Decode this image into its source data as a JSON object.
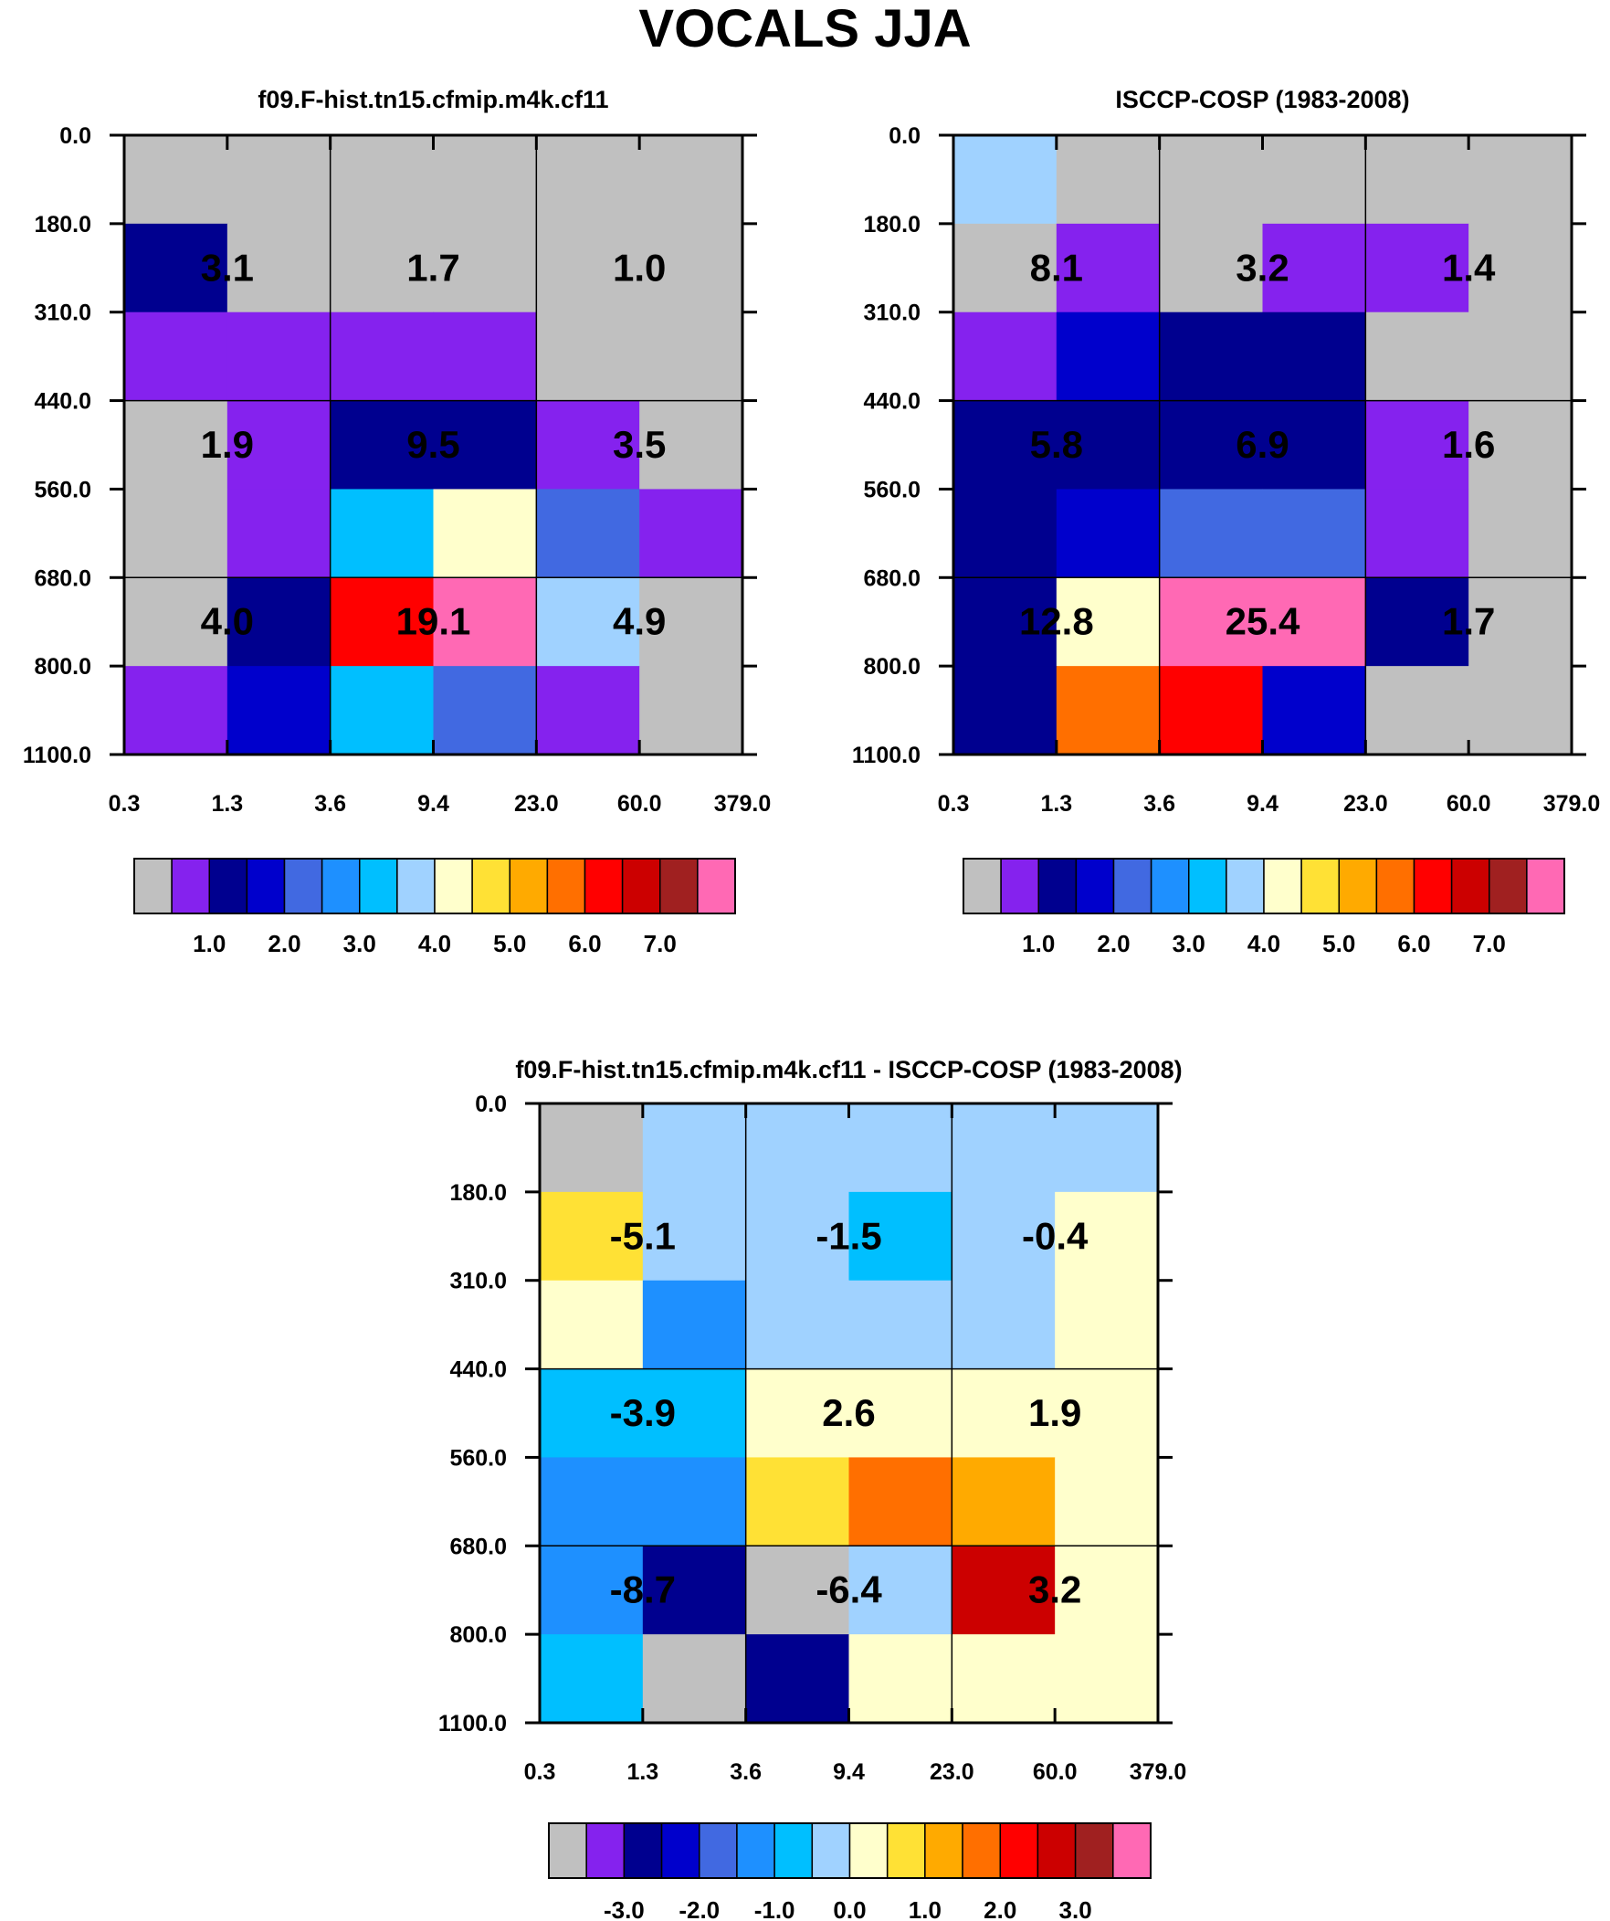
{
  "title": "VOCALS JJA",
  "palette": [
    "#c0c0c0",
    "#8522ee",
    "#00008f",
    "#0000cc",
    "#4169e1",
    "#1e90ff",
    "#00bfff",
    "#a0d2ff",
    "#ffffcc",
    "#ffe135",
    "#ffaa00",
    "#ff6f00",
    "#ff0000",
    "#cc0000",
    "#a02020",
    "#ff69b4"
  ],
  "chart_data": [
    {
      "type": "heatmap",
      "title": "f09.F-hist.tn15.cfmip.m4k.cf11",
      "x_ticks": [
        "0.3",
        "1.3",
        "3.6",
        "9.4",
        "23.0",
        "60.0",
        "379.0"
      ],
      "y_ticks": [
        "0.0",
        "180.0",
        "310.0",
        "440.0",
        "560.0",
        "680.0",
        "800.0",
        "1100.0"
      ],
      "cells": [
        [
          0,
          0,
          0,
          0,
          0,
          0
        ],
        [
          2,
          0,
          0,
          0,
          0,
          0
        ],
        [
          1,
          1,
          1,
          1,
          0,
          0
        ],
        [
          0,
          1,
          2,
          2,
          1,
          0
        ],
        [
          0,
          1,
          6,
          8,
          4,
          1
        ],
        [
          0,
          2,
          12,
          15,
          7,
          0
        ],
        [
          1,
          3,
          6,
          4,
          1,
          0
        ]
      ],
      "labels": [
        [
          "3.1",
          "1.7",
          "1.0"
        ],
        [
          "1.9",
          "9.5",
          "3.5"
        ],
        [
          "4.0",
          "19.1",
          "4.9"
        ]
      ],
      "colorbar_labels": [
        "1.0",
        "2.0",
        "3.0",
        "4.0",
        "5.0",
        "6.0",
        "7.0"
      ]
    },
    {
      "type": "heatmap",
      "title": "ISCCP-COSP (1983-2008)",
      "x_ticks": [
        "0.3",
        "1.3",
        "3.6",
        "9.4",
        "23.0",
        "60.0",
        "379.0"
      ],
      "y_ticks": [
        "0.0",
        "180.0",
        "310.0",
        "440.0",
        "560.0",
        "680.0",
        "800.0",
        "1100.0"
      ],
      "cells": [
        [
          7,
          0,
          0,
          0,
          0,
          0
        ],
        [
          0,
          1,
          0,
          1,
          1,
          0
        ],
        [
          1,
          3,
          2,
          2,
          0,
          0
        ],
        [
          2,
          2,
          2,
          2,
          1,
          0
        ],
        [
          2,
          3,
          4,
          4,
          1,
          0
        ],
        [
          2,
          8,
          15,
          15,
          2,
          0
        ],
        [
          2,
          11,
          12,
          3,
          0,
          0
        ]
      ],
      "labels": [
        [
          "8.1",
          "3.2",
          "1.4"
        ],
        [
          "5.8",
          "6.9",
          "1.6"
        ],
        [
          "12.8",
          "25.4",
          "1.7"
        ]
      ],
      "colorbar_labels": [
        "1.0",
        "2.0",
        "3.0",
        "4.0",
        "5.0",
        "6.0",
        "7.0"
      ]
    },
    {
      "type": "heatmap",
      "title": "f09.F-hist.tn15.cfmip.m4k.cf11 - ISCCP-COSP (1983-2008)",
      "x_ticks": [
        "0.3",
        "1.3",
        "3.6",
        "9.4",
        "23.0",
        "60.0",
        "379.0"
      ],
      "y_ticks": [
        "0.0",
        "180.0",
        "310.0",
        "440.0",
        "560.0",
        "680.0",
        "800.0",
        "1100.0"
      ],
      "cells": [
        [
          0,
          7,
          7,
          7,
          7,
          7
        ],
        [
          9,
          7,
          7,
          6,
          7,
          8
        ],
        [
          8,
          5,
          7,
          7,
          7,
          8
        ],
        [
          6,
          6,
          8,
          8,
          8,
          8
        ],
        [
          5,
          5,
          9,
          11,
          10,
          8
        ],
        [
          5,
          2,
          0,
          7,
          13,
          8
        ],
        [
          6,
          0,
          2,
          8,
          8,
          8
        ]
      ],
      "labels": [
        [
          "-5.1",
          "-1.5",
          "-0.4"
        ],
        [
          "-3.9",
          "2.6",
          "1.9"
        ],
        [
          "-8.7",
          "-6.4",
          "3.2"
        ]
      ],
      "colorbar_labels": [
        "-3.0",
        "-2.0",
        "-1.0",
        "0.0",
        "1.0",
        "2.0",
        "3.0"
      ]
    }
  ]
}
